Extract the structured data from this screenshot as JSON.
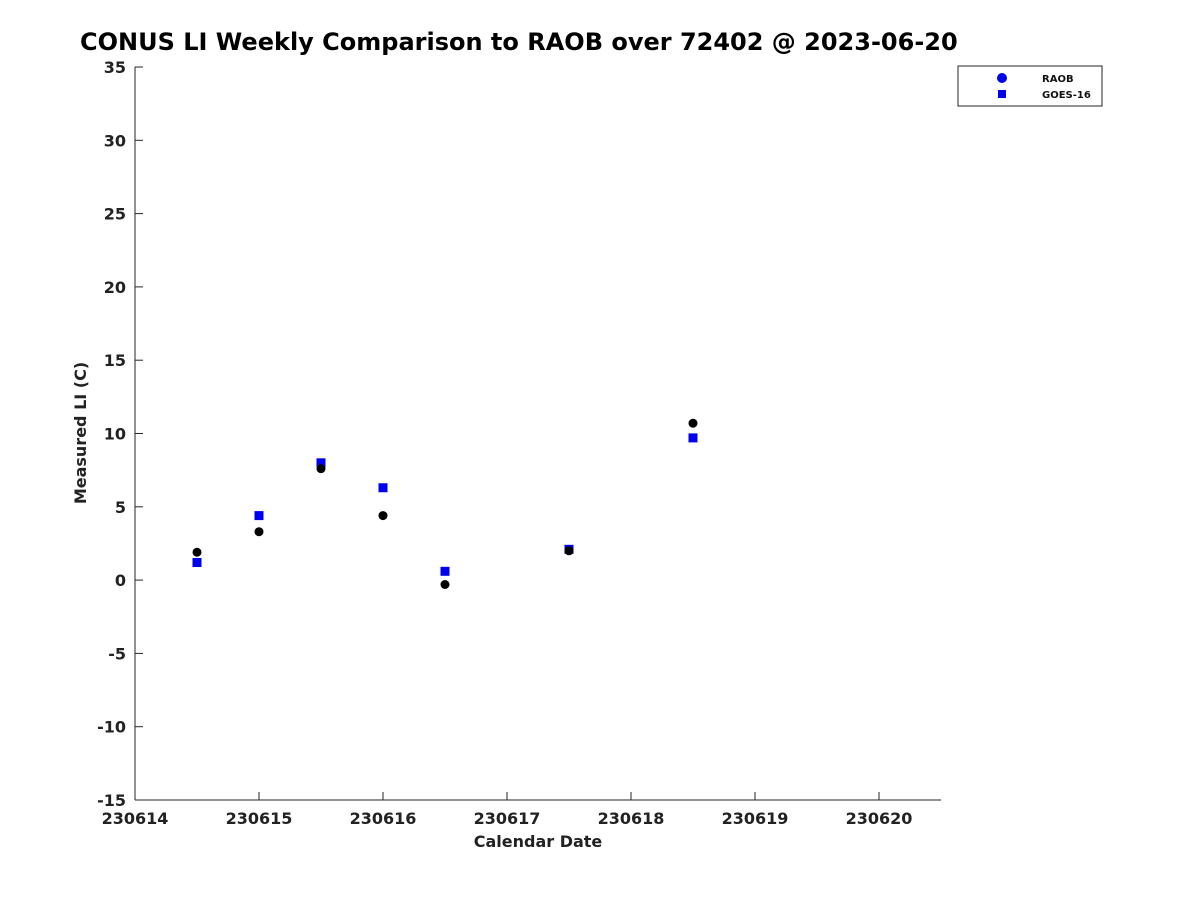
{
  "chart_data": {
    "type": "scatter",
    "title": "CONUS LI Weekly Comparison to RAOB over 72402 @ 2023-06-20",
    "xlabel": "Calendar Date",
    "ylabel": "Measured LI (C)",
    "xlim": [
      230614,
      230620.5
    ],
    "ylim": [
      -15,
      35
    ],
    "x_ticks": [
      230614,
      230615,
      230616,
      230617,
      230618,
      230619,
      230620
    ],
    "x_tick_labels": [
      "230614",
      "230615",
      "230616",
      "230617",
      "230618",
      "230619",
      "230620"
    ],
    "y_ticks": [
      -15,
      -10,
      -5,
      0,
      5,
      10,
      15,
      20,
      25,
      30,
      35
    ],
    "y_tick_labels": [
      "-15",
      "-10",
      "-5",
      "0",
      "5",
      "10",
      "15",
      "20",
      "25",
      "30",
      "35"
    ],
    "grid": false,
    "legend_position": "top-right",
    "series": [
      {
        "name": "RAOB",
        "marker": "circle",
        "color": "#000000",
        "legend_color": "#0000ee",
        "x": [
          230614.5,
          230615.0,
          230615.5,
          230616.0,
          230616.5,
          230617.5,
          230618.5
        ],
        "y": [
          1.9,
          3.3,
          7.6,
          4.4,
          -0.3,
          2.0,
          10.7
        ]
      },
      {
        "name": "GOES-16",
        "marker": "square",
        "color": "#0000ee",
        "legend_color": "#0000ee",
        "x": [
          230614.5,
          230615.0,
          230615.5,
          230616.0,
          230616.5,
          230617.5,
          230618.5
        ],
        "y": [
          1.2,
          4.4,
          8.0,
          6.3,
          0.6,
          2.1,
          9.7
        ]
      }
    ]
  }
}
